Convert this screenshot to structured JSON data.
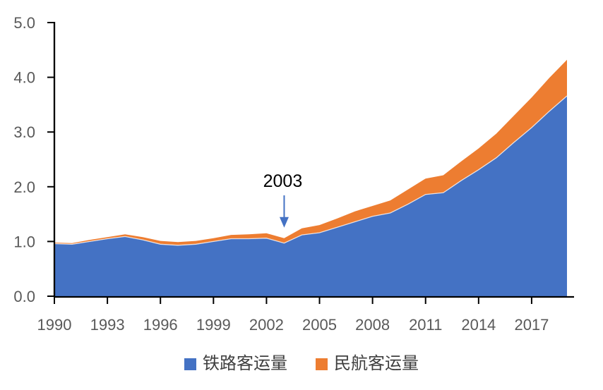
{
  "chart_data": {
    "type": "area",
    "stacked": true,
    "x": [
      1990,
      1991,
      1992,
      1993,
      1994,
      1995,
      1996,
      1997,
      1998,
      1999,
      2000,
      2001,
      2002,
      2003,
      2004,
      2005,
      2006,
      2007,
      2008,
      2009,
      2010,
      2011,
      2012,
      2013,
      2014,
      2015,
      2016,
      2017,
      2018,
      2019
    ],
    "series": [
      {
        "name": "铁路客运量",
        "color": "#4472C4",
        "values": [
          0.96,
          0.95,
          1.0,
          1.05,
          1.09,
          1.03,
          0.95,
          0.93,
          0.95,
          1.0,
          1.05,
          1.05,
          1.06,
          0.97,
          1.12,
          1.16,
          1.26,
          1.36,
          1.46,
          1.52,
          1.68,
          1.86,
          1.89,
          2.11,
          2.31,
          2.53,
          2.81,
          3.08,
          3.38,
          3.66
        ]
      },
      {
        "name": "民航客运量",
        "color": "#ED7D31",
        "values": [
          0.02,
          0.02,
          0.03,
          0.03,
          0.04,
          0.05,
          0.06,
          0.06,
          0.06,
          0.06,
          0.07,
          0.08,
          0.09,
          0.09,
          0.12,
          0.14,
          0.16,
          0.19,
          0.19,
          0.23,
          0.27,
          0.29,
          0.32,
          0.35,
          0.39,
          0.44,
          0.49,
          0.55,
          0.61,
          0.66
        ]
      }
    ],
    "x_tick_labels": [
      "1990",
      "1993",
      "1996",
      "1999",
      "2002",
      "2005",
      "2008",
      "2011",
      "2014",
      "2017"
    ],
    "y_tick_labels": [
      "0.0",
      "1.0",
      "2.0",
      "3.0",
      "4.0",
      "5.0"
    ],
    "ylim": [
      0,
      5
    ],
    "grid": false,
    "legend_position": "bottom",
    "annotation": {
      "text": "2003",
      "year": 2003,
      "arrow_color": "#4472C4",
      "text_color": "#000000"
    },
    "axis_color": "#000000",
    "tick_label_color": "#595959"
  }
}
